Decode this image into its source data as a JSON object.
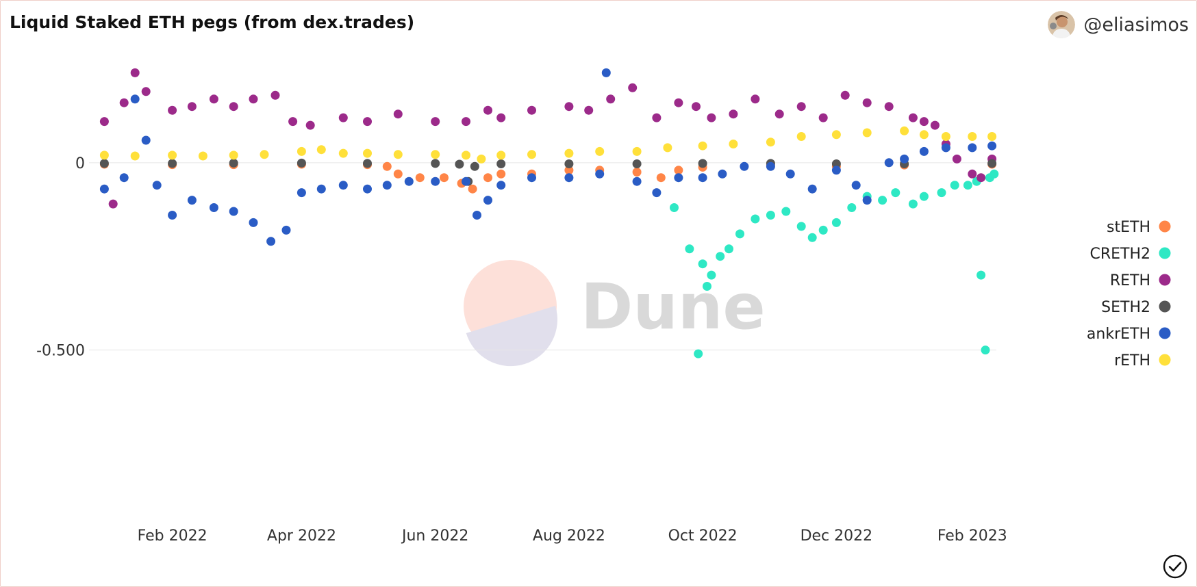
{
  "header": {
    "title": "Liquid Staked ETH pegs (from dex.trades)",
    "author": "@eliasimos"
  },
  "watermark": {
    "text": "Dune"
  },
  "icons": {
    "avatar": "avatar-icon",
    "status": "check-circle-icon"
  },
  "chart_data": {
    "type": "scatter",
    "title": "Liquid Staked ETH pegs (from dex.trades)",
    "xlabel": "",
    "ylabel": "",
    "xlim": [
      "2021-12-25",
      "2023-02-12"
    ],
    "ylim": [
      -0.95,
      0.27
    ],
    "y_ticks": [
      {
        "value": 0,
        "label": "0"
      },
      {
        "value": -0.5,
        "label": "-0.500"
      }
    ],
    "x_ticks": [
      {
        "date": "2022-02-01",
        "label": "Feb 2022"
      },
      {
        "date": "2022-04-01",
        "label": "Apr 2022"
      },
      {
        "date": "2022-06-01",
        "label": "Jun 2022"
      },
      {
        "date": "2022-08-01",
        "label": "Aug 2022"
      },
      {
        "date": "2022-10-01",
        "label": "Oct 2022"
      },
      {
        "date": "2022-12-01",
        "label": "Dec 2022"
      },
      {
        "date": "2023-02-01",
        "label": "Feb 2023"
      }
    ],
    "grid": "horizontal",
    "legend": "right",
    "series": [
      {
        "name": "stETH",
        "color": "#ff8547",
        "points": [
          [
            "2022-01-01",
            -0.004
          ],
          [
            "2022-02-01",
            -0.005
          ],
          [
            "2022-03-01",
            -0.005
          ],
          [
            "2022-04-01",
            -0.004
          ],
          [
            "2022-05-01",
            -0.005
          ],
          [
            "2022-05-10",
            -0.01
          ],
          [
            "2022-05-15",
            -0.03
          ],
          [
            "2022-05-25",
            -0.04
          ],
          [
            "2022-06-05",
            -0.04
          ],
          [
            "2022-06-13",
            -0.055
          ],
          [
            "2022-06-18",
            -0.07
          ],
          [
            "2022-06-25",
            -0.04
          ],
          [
            "2022-07-01",
            -0.03
          ],
          [
            "2022-07-15",
            -0.03
          ],
          [
            "2022-08-01",
            -0.02
          ],
          [
            "2022-08-15",
            -0.02
          ],
          [
            "2022-09-01",
            -0.025
          ],
          [
            "2022-09-12",
            -0.04
          ],
          [
            "2022-09-20",
            -0.02
          ],
          [
            "2022-10-01",
            -0.012
          ],
          [
            "2022-11-01",
            -0.006
          ],
          [
            "2022-12-01",
            -0.01
          ],
          [
            "2023-01-01",
            -0.006
          ],
          [
            "2023-02-10",
            -0.004
          ]
        ]
      },
      {
        "name": "CRETH2",
        "color": "#2ee8c4",
        "points": [
          [
            "2022-09-18",
            -0.12
          ],
          [
            "2022-09-25",
            -0.23
          ],
          [
            "2022-09-29",
            -0.51
          ],
          [
            "2022-10-01",
            -0.27
          ],
          [
            "2022-10-03",
            -0.33
          ],
          [
            "2022-10-05",
            -0.3
          ],
          [
            "2022-10-09",
            -0.25
          ],
          [
            "2022-10-13",
            -0.23
          ],
          [
            "2022-10-18",
            -0.19
          ],
          [
            "2022-10-25",
            -0.15
          ],
          [
            "2022-11-01",
            -0.14
          ],
          [
            "2022-11-08",
            -0.13
          ],
          [
            "2022-11-15",
            -0.17
          ],
          [
            "2022-11-20",
            -0.2
          ],
          [
            "2022-11-25",
            -0.18
          ],
          [
            "2022-12-01",
            -0.16
          ],
          [
            "2022-12-08",
            -0.12
          ],
          [
            "2022-12-15",
            -0.09
          ],
          [
            "2022-12-22",
            -0.1
          ],
          [
            "2022-12-28",
            -0.08
          ],
          [
            "2023-01-05",
            -0.11
          ],
          [
            "2023-01-10",
            -0.09
          ],
          [
            "2023-01-18",
            -0.08
          ],
          [
            "2023-01-24",
            -0.06
          ],
          [
            "2023-01-30",
            -0.06
          ],
          [
            "2023-02-03",
            -0.05
          ],
          [
            "2023-02-05",
            -0.3
          ],
          [
            "2023-02-07",
            -0.5
          ],
          [
            "2023-02-09",
            -0.04
          ],
          [
            "2023-02-11",
            -0.03
          ]
        ]
      },
      {
        "name": "RETH",
        "color": "#9c2a8a",
        "points": [
          [
            "2022-01-01",
            0.11
          ],
          [
            "2022-01-05",
            -0.11
          ],
          [
            "2022-01-10",
            0.16
          ],
          [
            "2022-01-15",
            0.24
          ],
          [
            "2022-01-20",
            0.19
          ],
          [
            "2022-02-01",
            0.14
          ],
          [
            "2022-02-10",
            0.15
          ],
          [
            "2022-02-20",
            0.17
          ],
          [
            "2022-03-01",
            0.15
          ],
          [
            "2022-03-10",
            0.17
          ],
          [
            "2022-03-20",
            0.18
          ],
          [
            "2022-03-28",
            0.11
          ],
          [
            "2022-04-05",
            0.1
          ],
          [
            "2022-04-20",
            0.12
          ],
          [
            "2022-05-01",
            0.11
          ],
          [
            "2022-05-15",
            0.13
          ],
          [
            "2022-06-01",
            0.11
          ],
          [
            "2022-06-15",
            0.11
          ],
          [
            "2022-06-25",
            0.14
          ],
          [
            "2022-07-01",
            0.12
          ],
          [
            "2022-07-15",
            0.14
          ],
          [
            "2022-08-01",
            0.15
          ],
          [
            "2022-08-10",
            0.14
          ],
          [
            "2022-08-20",
            0.17
          ],
          [
            "2022-08-30",
            0.2
          ],
          [
            "2022-09-10",
            0.12
          ],
          [
            "2022-09-20",
            0.16
          ],
          [
            "2022-09-28",
            0.15
          ],
          [
            "2022-10-05",
            0.12
          ],
          [
            "2022-10-15",
            0.13
          ],
          [
            "2022-10-25",
            0.17
          ],
          [
            "2022-11-05",
            0.13
          ],
          [
            "2022-11-15",
            0.15
          ],
          [
            "2022-11-25",
            0.12
          ],
          [
            "2022-12-05",
            0.18
          ],
          [
            "2022-12-15",
            0.16
          ],
          [
            "2022-12-25",
            0.15
          ],
          [
            "2023-01-05",
            0.12
          ],
          [
            "2023-01-10",
            0.11
          ],
          [
            "2023-01-15",
            0.1
          ],
          [
            "2023-01-20",
            0.05
          ],
          [
            "2023-01-25",
            0.01
          ],
          [
            "2023-02-01",
            -0.03
          ],
          [
            "2023-02-05",
            -0.04
          ],
          [
            "2023-02-10",
            0.01
          ]
        ]
      },
      {
        "name": "SETH2",
        "color": "#555555",
        "points": [
          [
            "2022-01-01",
            -0.002
          ],
          [
            "2022-02-01",
            -0.002
          ],
          [
            "2022-03-01",
            -0.001
          ],
          [
            "2022-04-01",
            -0.001
          ],
          [
            "2022-05-01",
            -0.002
          ],
          [
            "2022-06-01",
            -0.002
          ],
          [
            "2022-06-12",
            -0.004
          ],
          [
            "2022-06-16",
            -0.05
          ],
          [
            "2022-06-19",
            -0.01
          ],
          [
            "2022-07-01",
            -0.003
          ],
          [
            "2022-08-01",
            -0.003
          ],
          [
            "2022-09-01",
            -0.003
          ],
          [
            "2022-10-01",
            -0.002
          ],
          [
            "2022-11-01",
            -0.002
          ],
          [
            "2022-12-01",
            -0.003
          ],
          [
            "2023-01-01",
            -0.003
          ],
          [
            "2023-02-10",
            -0.002
          ]
        ]
      },
      {
        "name": "ankrETH",
        "color": "#2a5cc5",
        "points": [
          [
            "2022-01-01",
            -0.07
          ],
          [
            "2022-01-10",
            -0.04
          ],
          [
            "2022-01-15",
            0.17
          ],
          [
            "2022-01-20",
            0.06
          ],
          [
            "2022-01-25",
            -0.06
          ],
          [
            "2022-02-01",
            -0.14
          ],
          [
            "2022-02-10",
            -0.1
          ],
          [
            "2022-02-20",
            -0.12
          ],
          [
            "2022-03-01",
            -0.13
          ],
          [
            "2022-03-10",
            -0.16
          ],
          [
            "2022-03-18",
            -0.21
          ],
          [
            "2022-03-25",
            -0.18
          ],
          [
            "2022-04-01",
            -0.08
          ],
          [
            "2022-04-10",
            -0.07
          ],
          [
            "2022-04-20",
            -0.06
          ],
          [
            "2022-05-01",
            -0.07
          ],
          [
            "2022-05-10",
            -0.06
          ],
          [
            "2022-05-20",
            -0.05
          ],
          [
            "2022-06-01",
            -0.05
          ],
          [
            "2022-06-15",
            -0.05
          ],
          [
            "2022-06-20",
            -0.14
          ],
          [
            "2022-06-25",
            -0.1
          ],
          [
            "2022-07-01",
            -0.06
          ],
          [
            "2022-07-15",
            -0.04
          ],
          [
            "2022-08-01",
            -0.04
          ],
          [
            "2022-08-15",
            -0.03
          ],
          [
            "2022-08-18",
            0.24
          ],
          [
            "2022-09-01",
            -0.05
          ],
          [
            "2022-09-10",
            -0.08
          ],
          [
            "2022-09-20",
            -0.04
          ],
          [
            "2022-10-01",
            -0.04
          ],
          [
            "2022-10-10",
            -0.03
          ],
          [
            "2022-10-20",
            -0.01
          ],
          [
            "2022-11-01",
            -0.01
          ],
          [
            "2022-11-10",
            -0.03
          ],
          [
            "2022-11-20",
            -0.07
          ],
          [
            "2022-12-01",
            -0.02
          ],
          [
            "2022-12-10",
            -0.06
          ],
          [
            "2022-12-15",
            -0.1
          ],
          [
            "2022-12-25",
            0.0
          ],
          [
            "2023-01-01",
            0.01
          ],
          [
            "2023-01-10",
            0.03
          ],
          [
            "2023-01-20",
            0.04
          ],
          [
            "2023-02-01",
            0.04
          ],
          [
            "2023-02-10",
            0.045
          ]
        ]
      },
      {
        "name": "rETH",
        "color": "#ffe03a",
        "points": [
          [
            "2022-01-01",
            0.02
          ],
          [
            "2022-01-15",
            0.018
          ],
          [
            "2022-02-01",
            0.02
          ],
          [
            "2022-02-15",
            0.018
          ],
          [
            "2022-03-01",
            0.02
          ],
          [
            "2022-03-15",
            0.022
          ],
          [
            "2022-04-01",
            0.03
          ],
          [
            "2022-04-10",
            0.035
          ],
          [
            "2022-04-20",
            0.025
          ],
          [
            "2022-05-01",
            0.025
          ],
          [
            "2022-05-15",
            0.022
          ],
          [
            "2022-06-01",
            0.022
          ],
          [
            "2022-06-15",
            0.02
          ],
          [
            "2022-06-22",
            0.01
          ],
          [
            "2022-07-01",
            0.02
          ],
          [
            "2022-07-15",
            0.022
          ],
          [
            "2022-08-01",
            0.025
          ],
          [
            "2022-08-15",
            0.03
          ],
          [
            "2022-09-01",
            0.03
          ],
          [
            "2022-09-15",
            0.04
          ],
          [
            "2022-10-01",
            0.045
          ],
          [
            "2022-10-15",
            0.05
          ],
          [
            "2022-11-01",
            0.055
          ],
          [
            "2022-11-15",
            0.07
          ],
          [
            "2022-12-01",
            0.075
          ],
          [
            "2022-12-15",
            0.08
          ],
          [
            "2023-01-01",
            0.085
          ],
          [
            "2023-01-10",
            0.075
          ],
          [
            "2023-01-20",
            0.07
          ],
          [
            "2023-02-01",
            0.07
          ],
          [
            "2023-02-10",
            0.07
          ]
        ]
      }
    ]
  }
}
